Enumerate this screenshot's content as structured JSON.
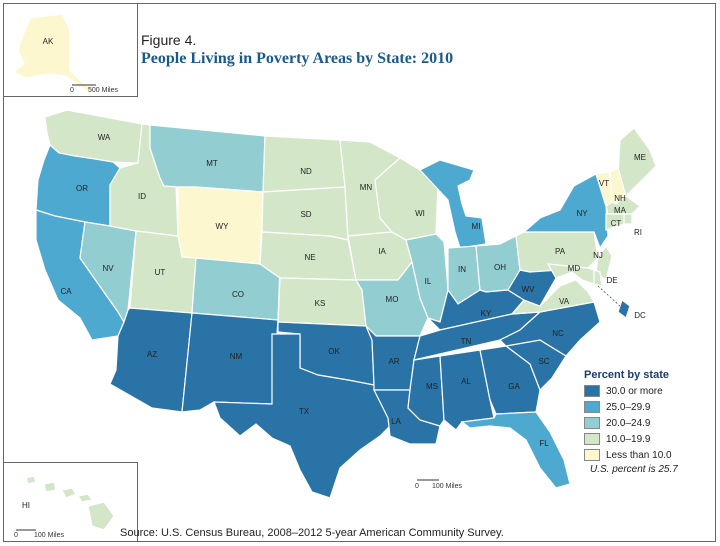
{
  "figure_label": "Figure 4.",
  "title": "People Living in Poverty Areas by State: 2010",
  "source": "Source: U.S. Census Bureau, 2008–2012 5-year American Community Survey.",
  "legend": {
    "title": "Percent by state",
    "classes": [
      {
        "label": "30.0 or more",
        "color": "#2a73a7"
      },
      {
        "label": "25.0–29.9",
        "color": "#4ea9d0"
      },
      {
        "label": "20.0–24.9",
        "color": "#92cdd2"
      },
      {
        "label": "10.0–19.9",
        "color": "#d4e6c8"
      },
      {
        "label": "Less than 10.0",
        "color": "#fdf7cf"
      }
    ]
  },
  "us_note": "U.S. percent is 25.7",
  "scales": {
    "alaska": "500 Miles",
    "hawaii": "100 Miles",
    "main": "100 Miles",
    "zero": "0"
  },
  "states": {
    "WA": 3,
    "OR": 1,
    "CA": 1,
    "NV": 2,
    "ID": 3,
    "MT": 2,
    "WY": 4,
    "UT": 3,
    "CO": 2,
    "AZ": 0,
    "NM": 0,
    "ND": 3,
    "SD": 3,
    "NE": 3,
    "KS": 3,
    "OK": 0,
    "TX": 0,
    "MN": 3,
    "IA": 3,
    "MO": 2,
    "AR": 0,
    "LA": 0,
    "WI": 3,
    "IL": 2,
    "MI": 1,
    "IN": 2,
    "OH": 2,
    "KY": 0,
    "TN": 0,
    "MS": 0,
    "AL": 0,
    "GA": 0,
    "FL": 1,
    "SC": 0,
    "NC": 0,
    "VA": 3,
    "WV": 0,
    "PA": 3,
    "NY": 1,
    "ME": 3,
    "VT": 4,
    "NH": 4,
    "MA": 3,
    "RI": 3,
    "CT": 3,
    "NJ": 3,
    "DE": 3,
    "MD": 3,
    "DC": 0,
    "AK": 4,
    "HI": 3
  }
}
